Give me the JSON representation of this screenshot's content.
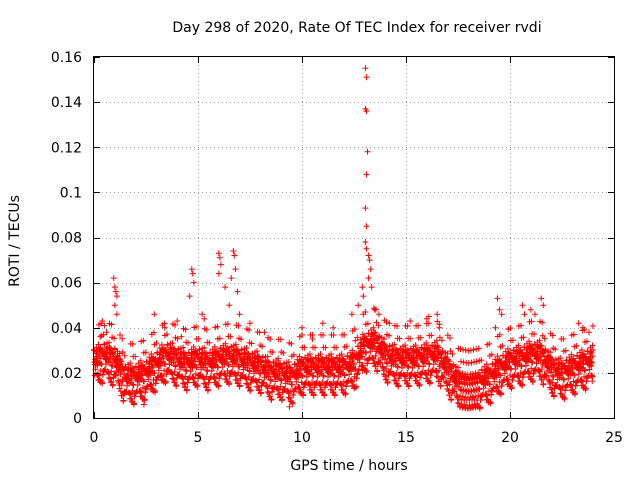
{
  "chart_data": {
    "type": "scatter",
    "title": "Day 298 of 2020, Rate Of TEC Index for receiver rvdi",
    "xlabel": "GPS time / hours",
    "ylabel": "ROTI / TECUs",
    "xlim": [
      0,
      25
    ],
    "ylim": [
      0,
      0.16
    ],
    "x_ticks": [
      0,
      5,
      10,
      15,
      20,
      25
    ],
    "x_tick_labels": [
      "0",
      "5",
      "10",
      "15",
      "20",
      "25"
    ],
    "y_ticks": [
      0,
      0.02,
      0.04,
      0.06,
      0.08,
      0.1,
      0.12,
      0.14,
      0.16
    ],
    "y_tick_labels": [
      "0",
      "0.02",
      "0.04",
      "0.06",
      "0.08",
      "0.1",
      "0.12",
      "0.14",
      "0.16"
    ],
    "grid": true,
    "marker": "+",
    "color": "#ff0000",
    "baseline": [
      [
        0,
        0.025
      ],
      [
        0.5,
        0.028
      ],
      [
        1,
        0.026
      ],
      [
        1.5,
        0.018
      ],
      [
        2,
        0.018
      ],
      [
        2.5,
        0.02
      ],
      [
        3,
        0.024
      ],
      [
        3.5,
        0.028
      ],
      [
        4,
        0.026
      ],
      [
        4.5,
        0.024
      ],
      [
        5,
        0.026
      ],
      [
        5.5,
        0.024
      ],
      [
        6,
        0.026
      ],
      [
        6.5,
        0.027
      ],
      [
        7,
        0.026
      ],
      [
        7.5,
        0.024
      ],
      [
        8,
        0.023
      ],
      [
        8.5,
        0.02
      ],
      [
        9,
        0.02
      ],
      [
        9.5,
        0.018
      ],
      [
        10,
        0.022
      ],
      [
        10.5,
        0.022
      ],
      [
        11,
        0.022
      ],
      [
        11.5,
        0.022
      ],
      [
        12,
        0.022
      ],
      [
        12.5,
        0.024
      ],
      [
        13,
        0.032
      ],
      [
        13.5,
        0.034
      ],
      [
        14,
        0.028
      ],
      [
        14.5,
        0.026
      ],
      [
        15,
        0.026
      ],
      [
        15.5,
        0.026
      ],
      [
        16,
        0.027
      ],
      [
        16.5,
        0.028
      ],
      [
        17,
        0.022
      ],
      [
        17.5,
        0.016
      ],
      [
        18,
        0.015
      ],
      [
        18.5,
        0.016
      ],
      [
        19,
        0.018
      ],
      [
        19.5,
        0.022
      ],
      [
        20,
        0.025
      ],
      [
        20.5,
        0.026
      ],
      [
        21,
        0.028
      ],
      [
        21.5,
        0.028
      ],
      [
        22,
        0.022
      ],
      [
        22.5,
        0.02
      ],
      [
        23,
        0.022
      ],
      [
        23.5,
        0.024
      ],
      [
        24,
        0.026
      ]
    ],
    "spread": 0.006,
    "samples_per_hour": 120,
    "notable_points": [
      [
        0.95,
        0.062
      ],
      [
        1.0,
        0.058
      ],
      [
        1.05,
        0.056
      ],
      [
        1.1,
        0.054
      ],
      [
        1.0,
        0.05
      ],
      [
        1.1,
        0.046
      ],
      [
        0.4,
        0.043
      ],
      [
        0.5,
        0.041
      ],
      [
        0.3,
        0.036
      ],
      [
        0.6,
        0.038
      ],
      [
        2.9,
        0.046
      ],
      [
        3.4,
        0.04
      ],
      [
        4.0,
        0.043
      ],
      [
        4.2,
        0.036
      ],
      [
        4.7,
        0.066
      ],
      [
        4.75,
        0.064
      ],
      [
        4.8,
        0.06
      ],
      [
        4.6,
        0.054
      ],
      [
        5.2,
        0.046
      ],
      [
        5.3,
        0.044
      ],
      [
        6.0,
        0.073
      ],
      [
        6.05,
        0.071
      ],
      [
        6.1,
        0.068
      ],
      [
        6.0,
        0.064
      ],
      [
        6.3,
        0.058
      ],
      [
        6.7,
        0.074
      ],
      [
        6.75,
        0.072
      ],
      [
        6.8,
        0.066
      ],
      [
        6.6,
        0.062
      ],
      [
        6.9,
        0.056
      ],
      [
        6.5,
        0.05
      ],
      [
        7.0,
        0.046
      ],
      [
        7.5,
        0.042
      ],
      [
        8.2,
        0.038
      ],
      [
        10.0,
        0.04
      ],
      [
        10.5,
        0.035
      ],
      [
        11.0,
        0.042
      ],
      [
        11.5,
        0.04
      ],
      [
        12.4,
        0.046
      ],
      [
        12.7,
        0.05
      ],
      [
        12.9,
        0.058
      ],
      [
        12.95,
        0.054
      ],
      [
        13.05,
        0.155
      ],
      [
        13.1,
        0.151
      ],
      [
        13.05,
        0.137
      ],
      [
        13.1,
        0.136
      ],
      [
        13.15,
        0.118
      ],
      [
        13.1,
        0.108
      ],
      [
        13.05,
        0.093
      ],
      [
        13.1,
        0.085
      ],
      [
        13.05,
        0.078
      ],
      [
        13.1,
        0.075
      ],
      [
        13.2,
        0.072
      ],
      [
        13.25,
        0.07
      ],
      [
        13.3,
        0.066
      ],
      [
        13.2,
        0.062
      ],
      [
        13.35,
        0.058
      ],
      [
        13.5,
        0.048
      ],
      [
        13.7,
        0.046
      ],
      [
        14.2,
        0.042
      ],
      [
        15.2,
        0.043
      ],
      [
        16.0,
        0.044
      ],
      [
        16.1,
        0.045
      ],
      [
        16.5,
        0.046
      ],
      [
        16.6,
        0.04
      ],
      [
        19.4,
        0.053
      ],
      [
        19.5,
        0.048
      ],
      [
        19.6,
        0.046
      ],
      [
        19.3,
        0.04
      ],
      [
        20.6,
        0.05
      ],
      [
        20.7,
        0.046
      ],
      [
        21.0,
        0.048
      ],
      [
        21.2,
        0.046
      ],
      [
        21.5,
        0.053
      ],
      [
        21.6,
        0.05
      ],
      [
        23.3,
        0.042
      ],
      [
        23.5,
        0.04
      ],
      [
        23.8,
        0.038
      ],
      [
        2.4,
        0.006
      ],
      [
        9.4,
        0.005
      ],
      [
        17.8,
        0.008
      ],
      [
        18.2,
        0.009
      ],
      [
        18.6,
        0.01
      ]
    ]
  }
}
